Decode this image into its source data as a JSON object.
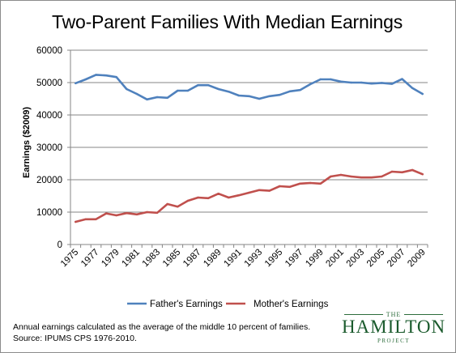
{
  "chart_data": {
    "type": "line",
    "title": "Two-Parent Families With Median Earnings",
    "ylabel": "Earnings ($2009)",
    "xlabel": "",
    "ylim": [
      0,
      60000
    ],
    "yticks": [
      0,
      10000,
      20000,
      30000,
      40000,
      50000,
      60000
    ],
    "xtick_labels": [
      "1975",
      "1977",
      "1979",
      "1981",
      "1983",
      "1985",
      "1987",
      "1989",
      "1991",
      "1993",
      "1995",
      "1997",
      "1999",
      "2001",
      "2003",
      "2005",
      "2007",
      "2009"
    ],
    "x": [
      1975,
      1976,
      1977,
      1978,
      1979,
      1980,
      1981,
      1982,
      1983,
      1984,
      1985,
      1986,
      1987,
      1988,
      1989,
      1990,
      1991,
      1992,
      1993,
      1994,
      1995,
      1996,
      1997,
      1998,
      1999,
      2000,
      2001,
      2002,
      2003,
      2004,
      2005,
      2006,
      2007,
      2008,
      2009
    ],
    "grid": true,
    "legend_position": "bottom",
    "series": [
      {
        "name": "Father's Earnings",
        "color": "#4f81bd",
        "values": [
          49800,
          51000,
          52400,
          52200,
          51700,
          48000,
          46500,
          44800,
          45500,
          45300,
          47500,
          47500,
          49200,
          49200,
          48000,
          47200,
          46000,
          45800,
          45000,
          45800,
          46200,
          47300,
          47700,
          49500,
          51000,
          51000,
          50300,
          50000,
          50000,
          49700,
          49900,
          49600,
          51100,
          48300,
          46500
        ]
      },
      {
        "name": "Mother's Earnings",
        "color": "#c0504d",
        "values": [
          7000,
          7800,
          7800,
          9600,
          9000,
          9700,
          9300,
          10000,
          9800,
          12500,
          11700,
          13500,
          14500,
          14300,
          15700,
          14500,
          15200,
          16000,
          16800,
          16600,
          18000,
          17800,
          18800,
          19000,
          18800,
          21000,
          21500,
          21000,
          20700,
          20700,
          21000,
          22500,
          22300,
          23000,
          21700
        ]
      }
    ]
  },
  "footnote": {
    "line1": "Annual earnings calculated as the average of the middle 10 percent of families.",
    "line2": "Source: IPUMS CPS 1976-2010."
  },
  "logo": {
    "top": "THE",
    "main": "HAMILTON",
    "bottom": "PROJECT"
  }
}
